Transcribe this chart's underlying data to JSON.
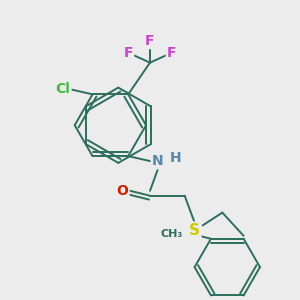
{
  "background_color": "#ececec",
  "figure_size": [
    3.0,
    3.0
  ],
  "dpi": 100,
  "atom_colors": {
    "C": "#2d6e5e",
    "N": "#5588aa",
    "O": "#cc2200",
    "S": "#cccc00",
    "F": "#cc44cc",
    "Cl": "#44bb44",
    "H": "#5588aa"
  },
  "bond_color": "#2d6e5e",
  "bond_width": 1.4
}
